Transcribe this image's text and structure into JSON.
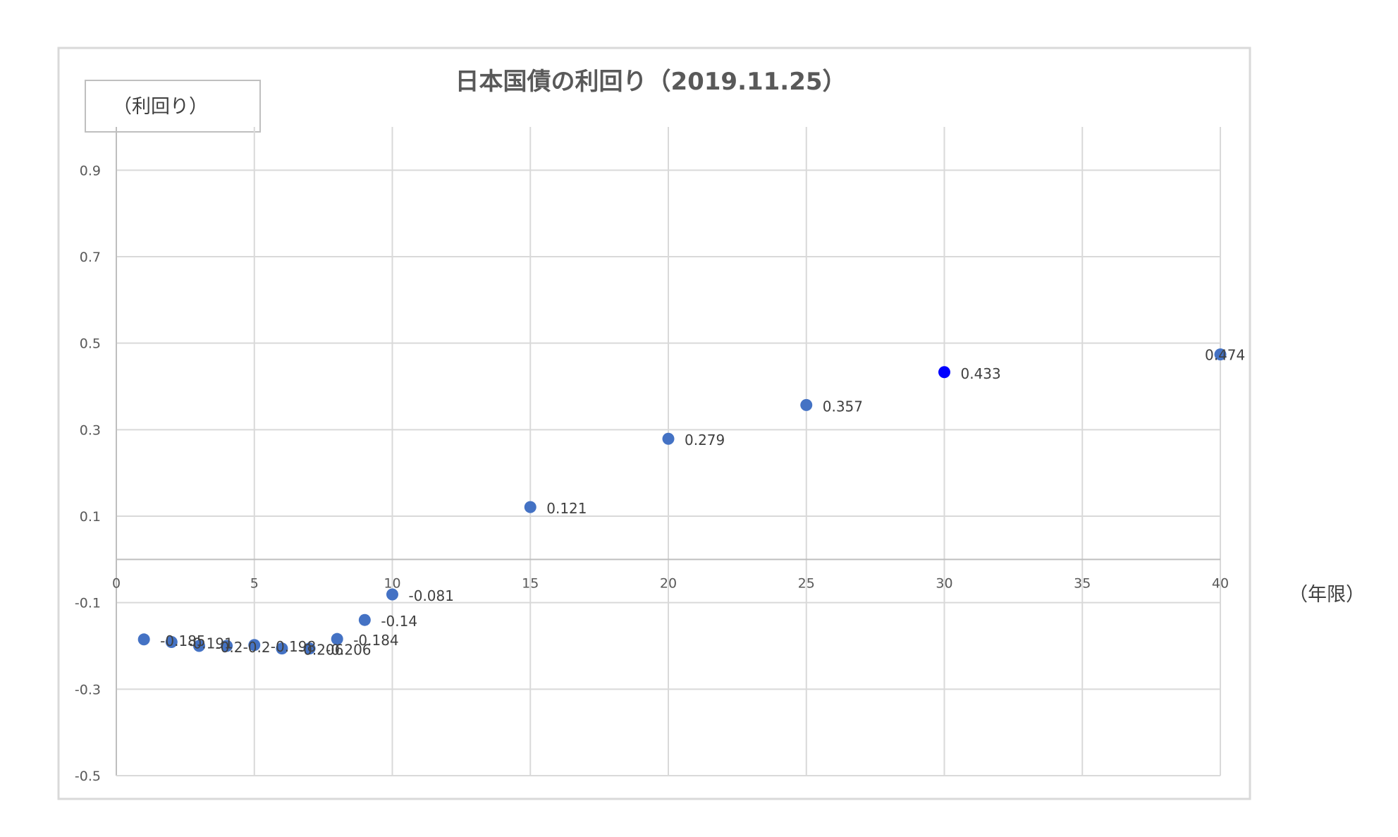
{
  "chart_data": {
    "type": "scatter",
    "title": "日本国債の利回り（2019.11.25）",
    "ylabel": "（利回り）",
    "xlabel": "（年限）",
    "xlim": [
      0,
      40
    ],
    "ylim": [
      -0.5,
      1.0
    ],
    "x_ticks": [
      "0",
      "5",
      "10",
      "15",
      "20",
      "25",
      "30",
      "35",
      "40"
    ],
    "y_ticks": [
      "0.9",
      "0.7",
      "0.5",
      "0.3",
      "0.1",
      "-0.1",
      "-0.3",
      "-0.5"
    ],
    "grid": true,
    "marker_color": "#4472c4",
    "highlight_color": "#0000ff",
    "series": [
      {
        "points": [
          {
            "x": 1,
            "y": -0.185,
            "label": "-0.185"
          },
          {
            "x": 2,
            "y": -0.191,
            "label": "-0.191"
          },
          {
            "x": 3,
            "y": -0.2,
            "label": "-0.2"
          },
          {
            "x": 4,
            "y": -0.2,
            "label": "-0.2"
          },
          {
            "x": 5,
            "y": -0.198,
            "label": "-0.198"
          },
          {
            "x": 6,
            "y": -0.206,
            "label": "-0.206"
          },
          {
            "x": 7,
            "y": -0.206,
            "label": "-0.206"
          },
          {
            "x": 8,
            "y": -0.184,
            "label": "-0.184"
          },
          {
            "x": 9,
            "y": -0.14,
            "label": "-0.14"
          },
          {
            "x": 10,
            "y": -0.081,
            "label": "-0.081"
          },
          {
            "x": 15,
            "y": 0.121,
            "label": "0.121"
          },
          {
            "x": 20,
            "y": 0.279,
            "label": "0.279"
          },
          {
            "x": 25,
            "y": 0.357,
            "label": "0.357"
          },
          {
            "x": 30,
            "y": 0.433,
            "label": "0.433",
            "highlight": true
          },
          {
            "x": 40,
            "y": 0.474,
            "label": "0.474"
          }
        ]
      }
    ]
  }
}
